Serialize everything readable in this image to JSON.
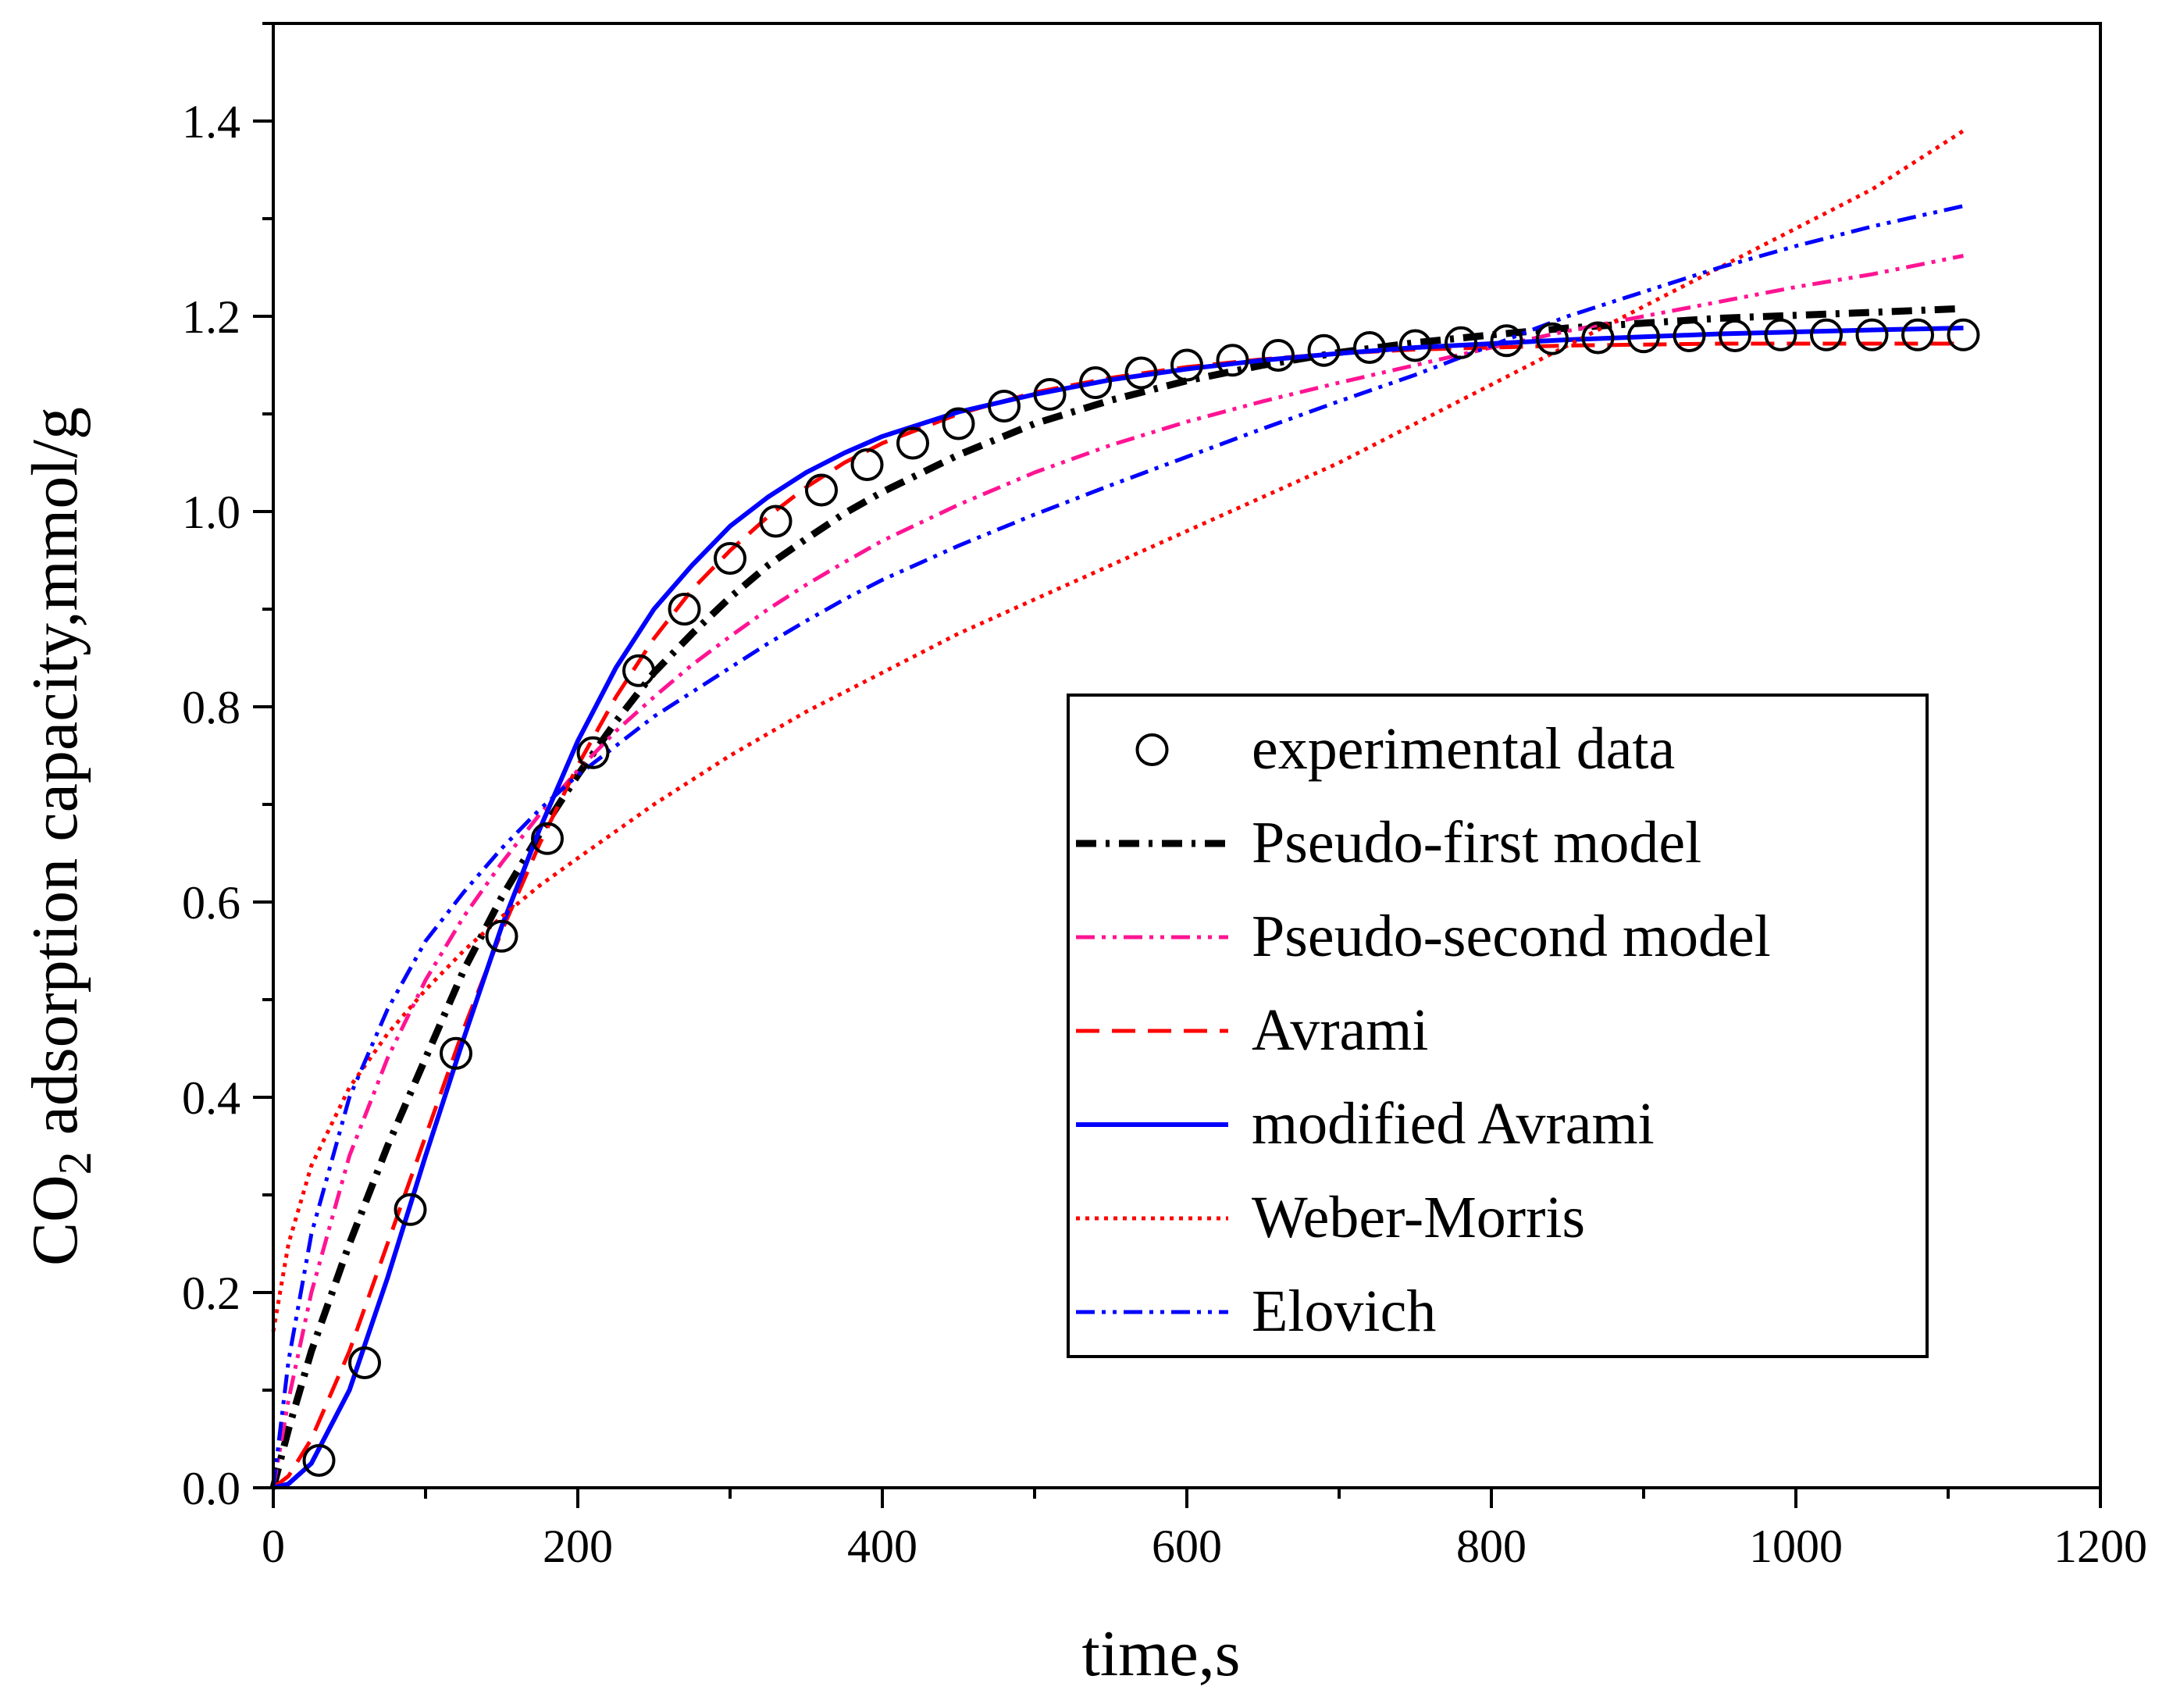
{
  "chart_data": {
    "type": "line",
    "title": "",
    "xlabel": "time,s",
    "ylabel_prefix": "CO",
    "ylabel_subscript": "2",
    "ylabel_suffix": " adsorption capacity,mmol/g",
    "xlim": [
      0,
      1200
    ],
    "ylim": [
      0,
      1.5
    ],
    "xticks": [
      0,
      200,
      400,
      600,
      800,
      1000,
      1200
    ],
    "xticks_labels": [
      "0",
      "200",
      "400",
      "600",
      "800",
      "1000",
      "1200"
    ],
    "yticks": [
      0,
      0.2,
      0.4,
      0.6,
      0.8,
      1.0,
      1.2,
      1.4
    ],
    "yticks_labels": [
      "0.0",
      "0.2",
      "0.4",
      "0.6",
      "0.8",
      "1.0",
      "1.2",
      "1.4"
    ],
    "grid": false,
    "legend_position": "center-right",
    "experimental": {
      "name": "experimental data",
      "marker": "open-circle",
      "color": "#000000",
      "x": [
        30,
        60,
        90,
        120,
        150,
        180,
        210,
        240,
        270,
        300,
        330,
        360,
        390,
        420,
        450,
        480,
        510,
        540,
        570,
        600,
        630,
        660,
        690,
        720,
        750,
        780,
        810,
        840,
        870,
        900,
        930,
        960,
        990,
        1020,
        1050,
        1080,
        1110
      ],
      "y": [
        0.028,
        0.128,
        0.285,
        0.445,
        0.565,
        0.665,
        0.753,
        0.837,
        0.9,
        0.952,
        0.99,
        1.022,
        1.048,
        1.07,
        1.09,
        1.108,
        1.12,
        1.132,
        1.142,
        1.15,
        1.155,
        1.16,
        1.165,
        1.168,
        1.17,
        1.173,
        1.175,
        1.177,
        1.178,
        1.179,
        1.18,
        1.18,
        1.181,
        1.181,
        1.181,
        1.181,
        1.181
      ]
    },
    "series": [
      {
        "name": "Pseudo-first model",
        "color": "#000000",
        "style": "dash-dot",
        "x": [
          0,
          10,
          25,
          50,
          75,
          100,
          125,
          150,
          175,
          200,
          225,
          250,
          275,
          300,
          325,
          350,
          375,
          400,
          450,
          500,
          550,
          600,
          650,
          700,
          750,
          800,
          850,
          900,
          950,
          1000,
          1050,
          1110
        ],
        "y": [
          0,
          0.06,
          0.14,
          0.25,
          0.35,
          0.44,
          0.53,
          0.605,
          0.67,
          0.73,
          0.785,
          0.835,
          0.875,
          0.912,
          0.945,
          0.972,
          0.998,
          1.02,
          1.058,
          1.09,
          1.114,
          1.134,
          1.15,
          1.163,
          1.173,
          1.181,
          1.188,
          1.193,
          1.198,
          1.201,
          1.204,
          1.208
        ]
      },
      {
        "name": "Pseudo-second model",
        "color": "#ff1493",
        "style": "dash-dot-dot",
        "x": [
          0,
          10,
          25,
          50,
          75,
          100,
          125,
          150,
          175,
          200,
          225,
          250,
          275,
          300,
          325,
          350,
          375,
          400,
          450,
          500,
          550,
          600,
          650,
          700,
          750,
          800,
          850,
          900,
          950,
          1000,
          1050,
          1110
        ],
        "y": [
          0,
          0.09,
          0.2,
          0.34,
          0.44,
          0.52,
          0.585,
          0.64,
          0.69,
          0.735,
          0.775,
          0.81,
          0.843,
          0.872,
          0.9,
          0.925,
          0.948,
          0.97,
          1.007,
          1.04,
          1.068,
          1.092,
          1.113,
          1.132,
          1.15,
          1.168,
          1.185,
          1.2,
          1.215,
          1.23,
          1.243,
          1.262
        ]
      },
      {
        "name": "Avrami",
        "color": "#ff0000",
        "style": "dashed",
        "x": [
          0,
          10,
          25,
          50,
          75,
          100,
          125,
          150,
          175,
          200,
          225,
          250,
          275,
          300,
          325,
          350,
          375,
          400,
          450,
          500,
          550,
          600,
          650,
          700,
          750,
          800,
          850,
          900,
          950,
          1000,
          1050,
          1110
        ],
        "y": [
          0,
          0.012,
          0.05,
          0.14,
          0.25,
          0.36,
          0.47,
          0.57,
          0.66,
          0.74,
          0.81,
          0.87,
          0.92,
          0.96,
          0.995,
          1.025,
          1.05,
          1.07,
          1.1,
          1.122,
          1.137,
          1.148,
          1.156,
          1.162,
          1.166,
          1.168,
          1.17,
          1.171,
          1.172,
          1.172,
          1.172,
          1.172
        ]
      },
      {
        "name": "modified Avrami",
        "color": "#0000ff",
        "style": "solid",
        "x": [
          0,
          10,
          25,
          50,
          75,
          100,
          125,
          150,
          175,
          200,
          225,
          250,
          275,
          300,
          325,
          350,
          375,
          400,
          450,
          500,
          550,
          600,
          650,
          700,
          750,
          800,
          850,
          900,
          950,
          1000,
          1050,
          1110
        ],
        "y": [
          0,
          0.004,
          0.025,
          0.1,
          0.215,
          0.34,
          0.46,
          0.575,
          0.675,
          0.765,
          0.84,
          0.9,
          0.945,
          0.985,
          1.015,
          1.04,
          1.06,
          1.077,
          1.102,
          1.12,
          1.135,
          1.146,
          1.155,
          1.162,
          1.168,
          1.172,
          1.176,
          1.179,
          1.182,
          1.184,
          1.186,
          1.188
        ]
      },
      {
        "name": "Weber-Morris",
        "color": "#ff0000",
        "style": "dotted",
        "x": [
          0,
          10,
          25,
          50,
          75,
          100,
          125,
          150,
          175,
          200,
          250,
          300,
          350,
          400,
          450,
          500,
          550,
          600,
          650,
          700,
          750,
          800,
          850,
          900,
          950,
          1000,
          1050,
          1110
        ],
        "y": [
          0.16,
          0.25,
          0.33,
          0.41,
          0.465,
          0.51,
          0.55,
          0.585,
          0.617,
          0.645,
          0.7,
          0.75,
          0.795,
          0.835,
          0.875,
          0.91,
          0.945,
          0.98,
          1.015,
          1.05,
          1.09,
          1.13,
          1.17,
          1.21,
          1.25,
          1.29,
          1.33,
          1.39
        ]
      },
      {
        "name": "Elovich",
        "color": "#0000ff",
        "style": "dash-dot-dot",
        "x": [
          0,
          10,
          25,
          50,
          75,
          100,
          125,
          150,
          175,
          200,
          225,
          250,
          275,
          300,
          325,
          350,
          375,
          400,
          450,
          500,
          550,
          600,
          650,
          700,
          750,
          800,
          850,
          900,
          950,
          1000,
          1050,
          1110
        ],
        "y": [
          0,
          0.13,
          0.26,
          0.4,
          0.49,
          0.56,
          0.61,
          0.655,
          0.695,
          0.73,
          0.76,
          0.79,
          0.815,
          0.84,
          0.865,
          0.888,
          0.91,
          0.93,
          0.965,
          0.997,
          1.027,
          1.056,
          1.085,
          1.113,
          1.14,
          1.17,
          1.2,
          1.225,
          1.25,
          1.272,
          1.292,
          1.313
        ]
      }
    ]
  }
}
